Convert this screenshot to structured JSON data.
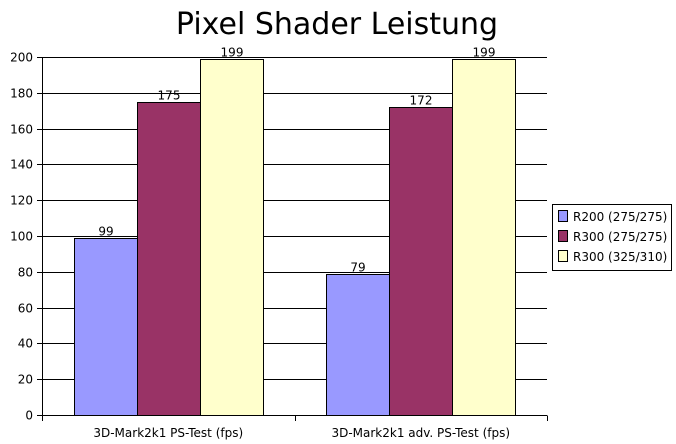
{
  "chart_data": {
    "type": "bar",
    "title": "Pixel Shader Leistung",
    "xlabel": "",
    "ylabel": "",
    "categories": [
      "3D-Mark2k1 PS-Test (fps)",
      "3D-Mark2k1 adv. PS-Test (fps)"
    ],
    "series": [
      {
        "name": "R200 (275/275)",
        "values": [
          99,
          79
        ],
        "color": "#9999ff"
      },
      {
        "name": "R300 (275/275)",
        "values": [
          175,
          172
        ],
        "color": "#993366"
      },
      {
        "name": "R300 (325/310)",
        "values": [
          199,
          199
        ],
        "color": "#ffffcc"
      }
    ],
    "ylim": [
      0,
      200
    ],
    "yticks": [
      0,
      20,
      40,
      60,
      80,
      100,
      120,
      140,
      160,
      180,
      200
    ],
    "grid": true,
    "legend_position": "right"
  }
}
